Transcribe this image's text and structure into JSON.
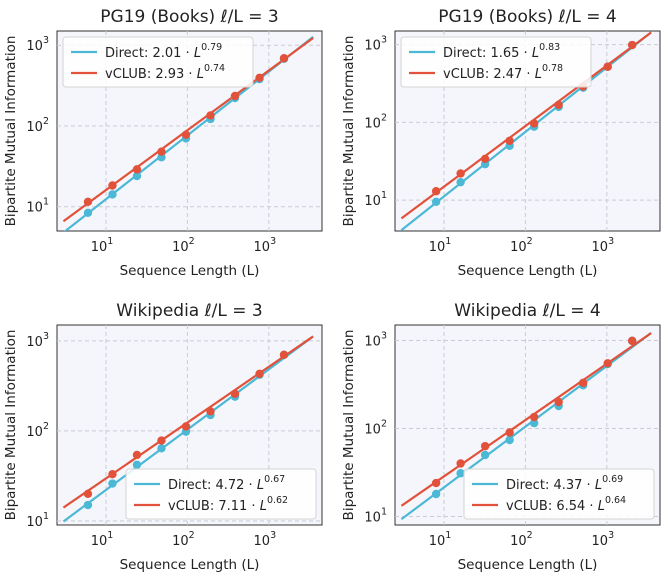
{
  "colors": {
    "direct": "#4bb8d6",
    "vclub": "#e2513a"
  },
  "chart_data": [
    {
      "type": "scatter",
      "title": "PG19 (Books) ℓ/L = 3",
      "xlabel": "Sequence Length (L)",
      "ylabel": "Bipartite Mutual Information",
      "xscale": "log",
      "yscale": "log",
      "xlim": [
        2.5,
        4500
      ],
      "ylim": [
        5,
        1500
      ],
      "xticks": [
        {
          "value": 10,
          "base": "10",
          "exp": "1"
        },
        {
          "value": 100,
          "base": "10",
          "exp": "2"
        },
        {
          "value": 1000,
          "base": "10",
          "exp": "3"
        }
      ],
      "yticks": [
        {
          "value": 10,
          "base": "10",
          "exp": "1"
        },
        {
          "value": 100,
          "base": "10",
          "exp": "2"
        },
        {
          "value": 1000,
          "base": "10",
          "exp": "3"
        }
      ],
      "legend_position": "upper-left",
      "fit_range": [
        3,
        3500
      ],
      "series": [
        {
          "name": "Direct",
          "color_key": "direct",
          "legend_coef": "2.01",
          "legend_exp": "0.79",
          "coef": 2.01,
          "exp": 0.79,
          "x": [
            6,
            12,
            24,
            48,
            96,
            192,
            384,
            768,
            1536
          ],
          "y": [
            8.4,
            14.2,
            24,
            41,
            70,
            122,
            222,
            380,
            680
          ]
        },
        {
          "name": "vCLUB",
          "color_key": "vclub",
          "legend_coef": "2.93",
          "legend_exp": "0.74",
          "coef": 2.93,
          "exp": 0.74,
          "x": [
            6,
            12,
            24,
            48,
            96,
            192,
            384,
            768,
            1536
          ],
          "y": [
            11.5,
            18.3,
            29,
            48,
            78,
            135,
            235,
            395,
            690
          ]
        }
      ]
    },
    {
      "type": "scatter",
      "title": "PG19 (Books) ℓ/L = 4",
      "xlabel": "Sequence Length (L)",
      "ylabel": "Bipartite Mutual Information",
      "xscale": "log",
      "yscale": "log",
      "xlim": [
        2.5,
        4500
      ],
      "ylim": [
        4,
        1500
      ],
      "xticks": [
        {
          "value": 10,
          "base": "10",
          "exp": "1"
        },
        {
          "value": 100,
          "base": "10",
          "exp": "2"
        },
        {
          "value": 1000,
          "base": "10",
          "exp": "3"
        }
      ],
      "yticks": [
        {
          "value": 10,
          "base": "10",
          "exp": "1"
        },
        {
          "value": 100,
          "base": "10",
          "exp": "2"
        },
        {
          "value": 1000,
          "base": "10",
          "exp": "3"
        }
      ],
      "legend_position": "upper-left",
      "fit_range": [
        3,
        3500
      ],
      "series": [
        {
          "name": "Direct",
          "color_key": "direct",
          "legend_coef": "1.65",
          "legend_exp": "0.83",
          "coef": 1.65,
          "exp": 0.83,
          "x": [
            8,
            16,
            32,
            64,
            128,
            256,
            512,
            1024,
            2048
          ],
          "y": [
            9.5,
            17,
            29,
            50,
            88,
            158,
            280,
            520,
            990
          ]
        },
        {
          "name": "vCLUB",
          "color_key": "vclub",
          "legend_coef": "2.47",
          "legend_exp": "0.78",
          "coef": 2.47,
          "exp": 0.78,
          "x": [
            8,
            16,
            32,
            64,
            128,
            256,
            512,
            1024,
            2048
          ],
          "y": [
            13,
            22,
            34,
            58,
            97,
            168,
            290,
            520,
            990
          ]
        }
      ]
    },
    {
      "type": "scatter",
      "title": "Wikipedia ℓ/L = 3",
      "xlabel": "Sequence Length (L)",
      "ylabel": "Bipartite Mutual Information",
      "xscale": "log",
      "yscale": "log",
      "xlim": [
        2.5,
        4500
      ],
      "ylim": [
        9,
        1500
      ],
      "xticks": [
        {
          "value": 10,
          "base": "10",
          "exp": "1"
        },
        {
          "value": 100,
          "base": "10",
          "exp": "2"
        },
        {
          "value": 1000,
          "base": "10",
          "exp": "3"
        }
      ],
      "yticks": [
        {
          "value": 10,
          "base": "10",
          "exp": "1"
        },
        {
          "value": 100,
          "base": "10",
          "exp": "2"
        },
        {
          "value": 1000,
          "base": "10",
          "exp": "3"
        }
      ],
      "legend_position": "lower-right",
      "fit_range": [
        3,
        3500
      ],
      "series": [
        {
          "name": "Direct",
          "color_key": "direct",
          "legend_coef": "4.72",
          "legend_exp": "0.67",
          "coef": 4.72,
          "exp": 0.67,
          "x": [
            6,
            12,
            24,
            48,
            96,
            192,
            384,
            768,
            1536
          ],
          "y": [
            15,
            26,
            42,
            64,
            98,
            150,
            240,
            420,
            700
          ]
        },
        {
          "name": "vCLUB",
          "color_key": "vclub",
          "legend_coef": "7.11",
          "legend_exp": "0.62",
          "coef": 7.11,
          "exp": 0.62,
          "x": [
            6,
            12,
            24,
            48,
            96,
            192,
            384,
            768,
            1536
          ],
          "y": [
            20,
            33,
            54,
            78,
            112,
            165,
            258,
            430,
            700
          ]
        }
      ]
    },
    {
      "type": "scatter",
      "title": "Wikipedia ℓ/L = 4",
      "xlabel": "Sequence Length (L)",
      "ylabel": "Bipartite Mutual Information",
      "xscale": "log",
      "yscale": "log",
      "xlim": [
        2.5,
        4500
      ],
      "ylim": [
        8,
        1500
      ],
      "xticks": [
        {
          "value": 10,
          "base": "10",
          "exp": "1"
        },
        {
          "value": 100,
          "base": "10",
          "exp": "2"
        },
        {
          "value": 1000,
          "base": "10",
          "exp": "3"
        }
      ],
      "yticks": [
        {
          "value": 10,
          "base": "10",
          "exp": "1"
        },
        {
          "value": 100,
          "base": "10",
          "exp": "2"
        },
        {
          "value": 1000,
          "base": "10",
          "exp": "3"
        }
      ],
      "legend_position": "lower-right",
      "fit_range": [
        3,
        3500
      ],
      "series": [
        {
          "name": "Direct",
          "color_key": "direct",
          "legend_coef": "4.37",
          "legend_exp": "0.69",
          "coef": 4.37,
          "exp": 0.69,
          "x": [
            8,
            16,
            32,
            64,
            128,
            256,
            512,
            1024,
            2048
          ],
          "y": [
            18,
            31,
            50,
            74,
            115,
            180,
            310,
            540,
            990
          ]
        },
        {
          "name": "vCLUB",
          "color_key": "vclub",
          "legend_coef": "6.54",
          "legend_exp": "0.64",
          "coef": 6.54,
          "exp": 0.64,
          "x": [
            8,
            16,
            32,
            64,
            128,
            256,
            512,
            1024,
            2048
          ],
          "y": [
            24,
            40,
            63,
            90,
            135,
            200,
            330,
            550,
            990
          ]
        }
      ]
    }
  ]
}
